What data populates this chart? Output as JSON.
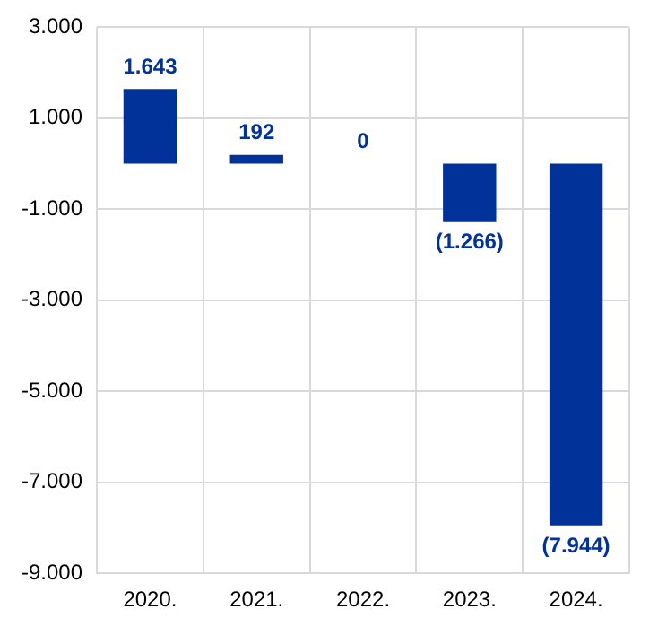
{
  "chart_data": {
    "type": "bar",
    "categories": [
      "2020.",
      "2021.",
      "2022.",
      "2023.",
      "2024."
    ],
    "values": [
      1643,
      192,
      0,
      -1266,
      -7944
    ],
    "color": "#003299",
    "value_labels": [
      "1.643",
      "192",
      "0",
      "(1.266)",
      "(7.944)"
    ],
    "ylim": [
      -9000,
      3000
    ],
    "yticks": [
      {
        "value": -9000,
        "label": "-9.000"
      },
      {
        "value": -7000,
        "label": "-7.000"
      },
      {
        "value": -5000,
        "label": "-5.000"
      },
      {
        "value": -3000,
        "label": "-3.000"
      },
      {
        "value": -1000,
        "label": "-1.000"
      },
      {
        "value": 1000,
        "label": "1.000"
      },
      {
        "value": 3000,
        "label": "3.000"
      }
    ],
    "grid": true,
    "legend": false
  }
}
